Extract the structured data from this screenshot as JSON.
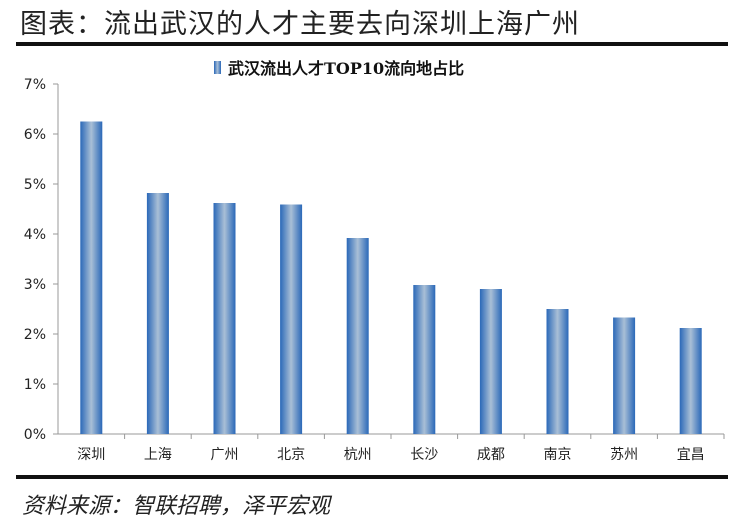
{
  "figure_title": "图表：流出武汉的人才主要去向深圳上海广州",
  "source": "资料来源：智联招聘，泽平宏观",
  "chart_data": {
    "type": "bar",
    "title": "武汉流出人才TOP10流向地占比",
    "legend": "top",
    "categories": [
      "深圳",
      "上海",
      "广州",
      "北京",
      "杭州",
      "长沙",
      "成都",
      "南京",
      "苏州",
      "宜昌"
    ],
    "values": [
      6.25,
      4.82,
      4.62,
      4.59,
      3.92,
      2.98,
      2.9,
      2.5,
      2.33,
      2.12
    ],
    "unit": "%",
    "ylim": [
      0,
      7
    ],
    "yticks": [
      "0%",
      "1%",
      "2%",
      "3%",
      "4%",
      "5%",
      "6%",
      "7%"
    ],
    "grid": false,
    "bar_color": "#2f6fbd"
  }
}
